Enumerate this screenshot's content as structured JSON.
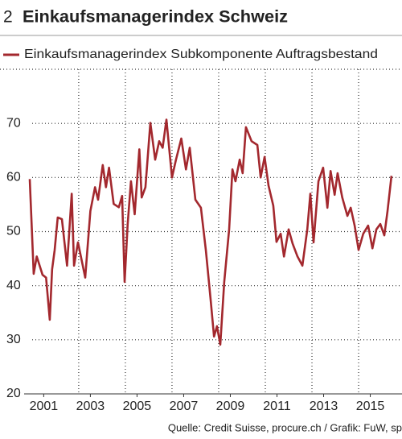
{
  "chart_data": {
    "type": "line",
    "number": "2",
    "title": "Einkaufsmanagerindex Schweiz",
    "source": "Quelle: Credit Suisse, procure.ch / Grafik: FuW, sp",
    "series": [
      {
        "name": "Einkaufsmanagerindex Subkomponente Auftragsbestand",
        "color": "#a3282e",
        "x": [
          2000.9,
          2001.07,
          2001.2,
          2001.45,
          2001.6,
          2001.76,
          2001.86,
          2001.97,
          2002.1,
          2002.28,
          2002.5,
          2002.7,
          2002.8,
          2002.97,
          2003.28,
          2003.5,
          2003.7,
          2003.83,
          2004.03,
          2004.17,
          2004.3,
          2004.5,
          2004.72,
          2004.86,
          2004.97,
          2005.1,
          2005.24,
          2005.4,
          2005.6,
          2005.7,
          2005.86,
          2006.07,
          2006.28,
          2006.45,
          2006.6,
          2006.76,
          2007.0,
          2007.17,
          2007.4,
          2007.6,
          2007.76,
          2008.0,
          2008.24,
          2008.45,
          2008.65,
          2008.8,
          2008.93,
          2009.07,
          2009.24,
          2009.45,
          2009.59,
          2009.72,
          2009.9,
          2010.03,
          2010.17,
          2010.41,
          2010.66,
          2010.8,
          2010.97,
          2011.14,
          2011.34,
          2011.48,
          2011.66,
          2011.8,
          2012.0,
          2012.17,
          2012.38,
          2012.59,
          2012.8,
          2012.93,
          2013.07,
          2013.28,
          2013.48,
          2013.66,
          2013.8,
          2013.97,
          2014.1,
          2014.3,
          2014.52,
          2014.66,
          2014.83,
          2015.0,
          2015.2,
          2015.41,
          2015.59,
          2015.76,
          2015.93,
          2016.1,
          2016.24,
          2016.41
        ],
        "values": [
          59.7,
          42.2,
          45.4,
          42,
          41.5,
          33.7,
          43,
          46.6,
          52.6,
          52.3,
          43.7,
          57,
          43.7,
          48,
          41.5,
          53.8,
          58.2,
          55.9,
          62.3,
          58.2,
          61.8,
          55.1,
          54.5,
          56.6,
          40.7,
          51.4,
          59.3,
          53.2,
          65.2,
          56.3,
          58.2,
          70.1,
          63.3,
          66.7,
          65.5,
          70.7,
          60,
          63.3,
          67.2,
          61.5,
          65.5,
          55.9,
          54.4,
          46.6,
          37.7,
          30.6,
          32.5,
          29.1,
          40.7,
          50.4,
          61.5,
          59.3,
          63.3,
          60.8,
          69.3,
          66.7,
          66,
          60,
          63.8,
          58.5,
          54.8,
          48.1,
          49.6,
          45.4,
          50.4,
          47.8,
          45.4,
          43.7,
          50.4,
          57,
          48,
          59.3,
          61.8,
          54.4,
          61.2,
          56.8,
          60.8,
          56.3,
          52.9,
          54.4,
          51.1,
          46.6,
          49.6,
          51.1,
          46.9,
          50.4,
          51.4,
          49.3,
          53.8,
          60.3
        ]
      }
    ],
    "xlim": [
      2000.66,
      2016.86
    ],
    "xticks": [
      {
        "value": 2001.5,
        "label": "2001"
      },
      {
        "value": 2003.5,
        "label": "2003"
      },
      {
        "value": 2005.5,
        "label": "2005"
      },
      {
        "value": 2007.5,
        "label": "2007"
      },
      {
        "value": 2009.5,
        "label": "2009"
      },
      {
        "value": 2011.5,
        "label": "2011"
      },
      {
        "value": 2013.5,
        "label": "2013"
      },
      {
        "value": 2015.5,
        "label": "2015"
      }
    ],
    "xgrid": [
      2003,
      2005,
      2007,
      2009,
      2011,
      2013,
      2015
    ],
    "ylim": [
      20,
      80
    ],
    "yticks": [
      20,
      30,
      40,
      50,
      60,
      70
    ],
    "grid": true
  }
}
